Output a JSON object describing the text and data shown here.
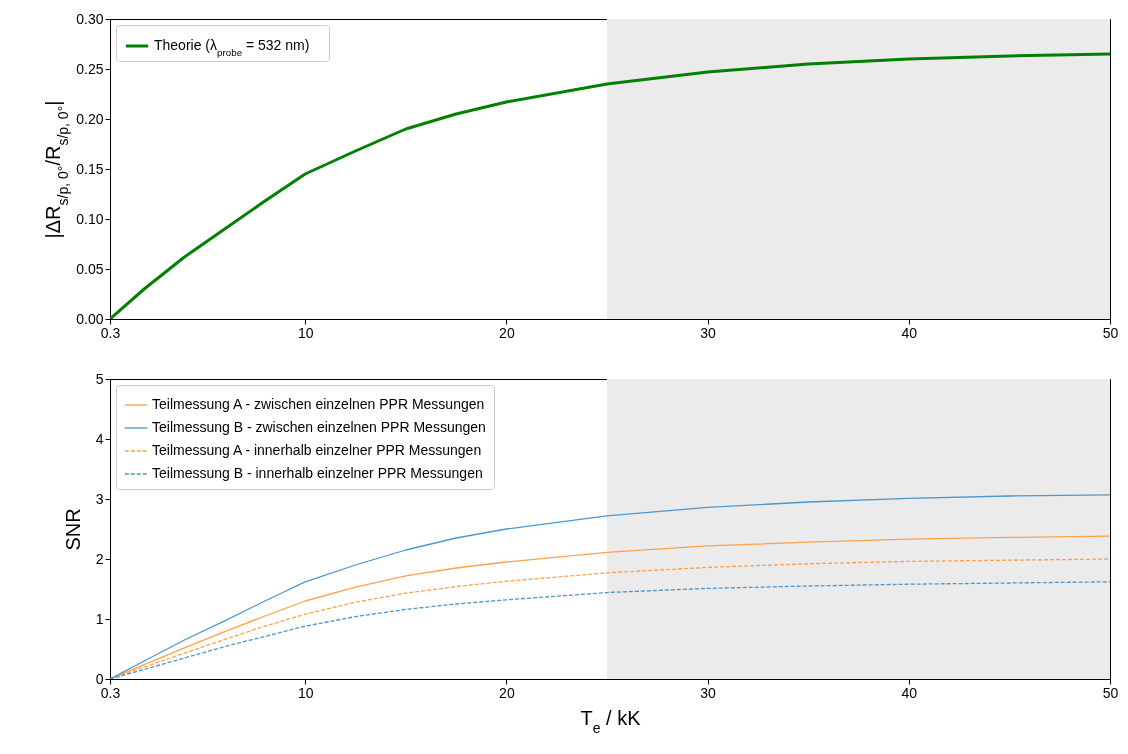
{
  "chart_data": [
    {
      "type": "line",
      "ylabel": "|ΔR$_{s/p, 0°}$/R$_{s/p, 0°}$|",
      "x": [
        0.3,
        2,
        4,
        6,
        8,
        10,
        12.5,
        15,
        17.5,
        20,
        25,
        30,
        35,
        40,
        45,
        50
      ],
      "series": [
        {
          "name": "Theorie (λ$_{probe}$ = 532 nm)",
          "color": "#008000",
          "line_style": "solid",
          "values": [
            0,
            0.03,
            0.062,
            0.09,
            0.118,
            0.145,
            0.168,
            0.19,
            0.205,
            0.217,
            0.235,
            0.247,
            0.255,
            0.26,
            0.263,
            0.265
          ]
        }
      ],
      "xlim": [
        0.3,
        50
      ],
      "xticks": [
        0.3,
        10,
        20,
        30,
        40,
        50
      ],
      "ylim": [
        0,
        0.3
      ],
      "yticks": [
        {
          "value": 0,
          "label": "0.00"
        },
        {
          "value": 0.05,
          "label": "0.05"
        },
        {
          "value": 0.1,
          "label": "0.10"
        },
        {
          "value": 0.15,
          "label": "0.15"
        },
        {
          "value": 0.2,
          "label": "0.20"
        },
        {
          "value": 0.25,
          "label": "0.25"
        },
        {
          "value": 0.3,
          "label": "0.30"
        }
      ],
      "bands": [
        {
          "axis": "x",
          "from": 25,
          "to": 50,
          "color": "#ebebeb"
        }
      ],
      "grid": false,
      "legend": "top left"
    },
    {
      "type": "line",
      "xlabel": "T$_{e}$ / kK",
      "ylabel": "SNR",
      "x": [
        0.3,
        2,
        4,
        6,
        8,
        10,
        12.5,
        15,
        17.5,
        20,
        25,
        30,
        35,
        40,
        45,
        50
      ],
      "series": [
        {
          "name": "Teilmessung A - zwischen einzelnen PPR Messungen",
          "color": "#ffa04a",
          "line_style": "solid",
          "values": [
            0,
            0.24,
            0.52,
            0.79,
            1.05,
            1.3,
            1.53,
            1.72,
            1.85,
            1.95,
            2.11,
            2.22,
            2.28,
            2.33,
            2.36,
            2.38
          ]
        },
        {
          "name": "Teilmessung B - zwischen einzelnen PPR Messungen",
          "color": "#4a98d0",
          "line_style": "solid",
          "values": [
            0,
            0.3,
            0.65,
            0.97,
            1.3,
            1.62,
            1.9,
            2.15,
            2.35,
            2.5,
            2.72,
            2.86,
            2.95,
            3.01,
            3.05,
            3.07
          ]
        },
        {
          "name": "Teilmessung A - innerhalb einzelner PPR Messungen",
          "color": "#ffa04a",
          "line_style": "dashed",
          "values": [
            0,
            0.2,
            0.43,
            0.66,
            0.88,
            1.08,
            1.28,
            1.43,
            1.54,
            1.63,
            1.77,
            1.86,
            1.92,
            1.96,
            1.98,
            2.0
          ]
        },
        {
          "name": "Teilmessung B - innerhalb einzelner PPR Messungen",
          "color": "#4a98d0",
          "line_style": "dashed",
          "values": [
            0,
            0.16,
            0.35,
            0.54,
            0.71,
            0.88,
            1.04,
            1.16,
            1.25,
            1.32,
            1.44,
            1.51,
            1.55,
            1.58,
            1.6,
            1.62
          ]
        }
      ],
      "xlim": [
        0.3,
        50
      ],
      "xticks": [
        0.3,
        10,
        20,
        30,
        40,
        50
      ],
      "ylim": [
        0,
        5
      ],
      "yticks": [
        0,
        1,
        2,
        3,
        4,
        5
      ],
      "bands": [
        {
          "axis": "x",
          "from": 25,
          "to": 50,
          "color": "#ebebeb"
        }
      ],
      "grid": false,
      "legend": "top left"
    }
  ]
}
